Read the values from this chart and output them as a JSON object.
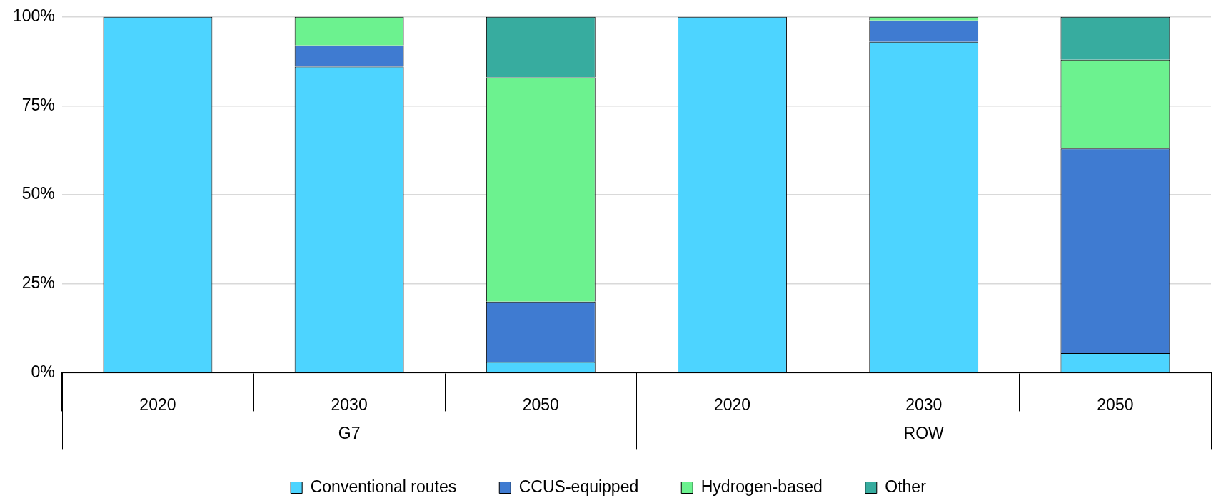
{
  "chart_data": {
    "type": "bar",
    "stacked": true,
    "categories": [
      "2020",
      "2030",
      "2050",
      "2020",
      "2030",
      "2050"
    ],
    "series": [
      {
        "name": "Conventional routes",
        "color": "#4dd4ff",
        "values": [
          100,
          86,
          3,
          100,
          93,
          5.5
        ]
      },
      {
        "name": "CCUS-equipped",
        "color": "#3f7bd1",
        "values": [
          0,
          6,
          17,
          0,
          6,
          57.5
        ]
      },
      {
        "name": "Hydrogen-based",
        "color": "#6cf28f",
        "values": [
          0,
          8,
          63,
          0,
          1,
          25
        ]
      },
      {
        "name": "Other",
        "color": "#37ac9f",
        "values": [
          0,
          0,
          17,
          0,
          0,
          12
        ]
      }
    ],
    "ylim": [
      0,
      100
    ],
    "yticks": [
      {
        "value": 0,
        "label": "0%"
      },
      {
        "value": 25,
        "label": "25%"
      },
      {
        "value": 50,
        "label": "50%"
      },
      {
        "value": 75,
        "label": "75%"
      },
      {
        "value": 100,
        "label": "100%"
      }
    ],
    "grid": "y",
    "legend": "bottom",
    "annotations": [
      "G7",
      "ROW"
    ]
  }
}
